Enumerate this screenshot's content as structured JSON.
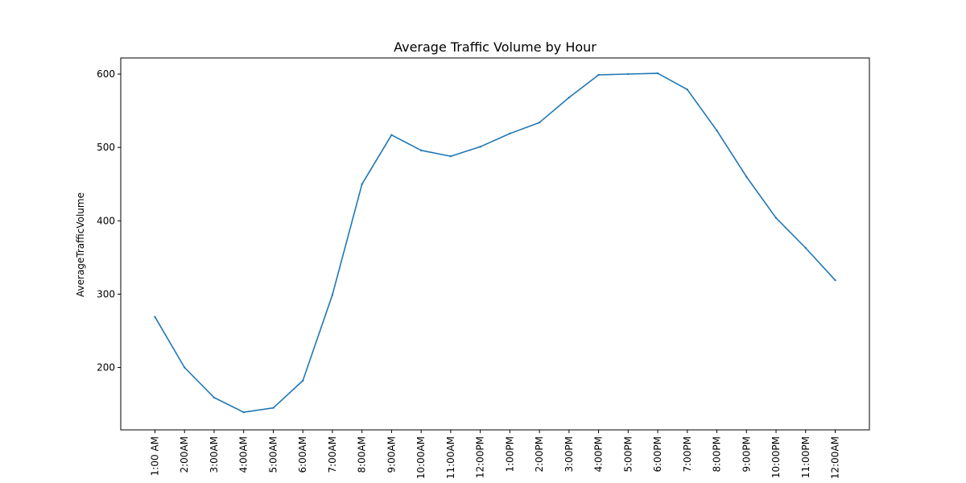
{
  "chart_data": {
    "type": "line",
    "title": "Average Traffic Volume by Hour",
    "xlabel": "",
    "ylabel": "AverageTrafficVolume",
    "ylim": [
      115,
      622
    ],
    "yticks": [
      200,
      300,
      400,
      500,
      600
    ],
    "grid": false,
    "categories": [
      "1:00 AM",
      "2:00AM",
      "3:00AM",
      "4:00AM",
      "5:00AM",
      "6:00AM",
      "7:00AM",
      "8:00AM",
      "9:00AM",
      "10:00AM",
      "11:00AM",
      "12:00PM",
      "1:00PM",
      "2:00PM",
      "3:00PM",
      "4:00PM",
      "5:00PM",
      "6:00PM",
      "7:00PM",
      "8:00PM",
      "9:00PM",
      "10:00PM",
      "11:00PM",
      "12:00AM"
    ],
    "series": [
      {
        "color": "#1f77b4",
        "values": [
          269,
          200,
          159,
          139,
          145,
          182,
          299,
          450,
          517,
          496,
          488,
          501,
          519,
          534,
          568,
          599,
          600,
          601,
          579,
          523,
          460,
          404,
          363,
          319
        ]
      }
    ]
  }
}
